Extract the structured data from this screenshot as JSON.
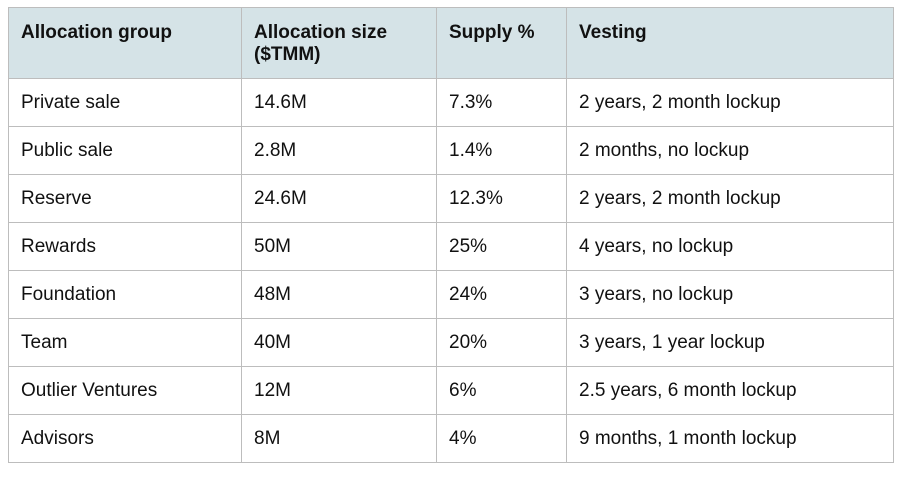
{
  "table": {
    "headers": [
      "Allocation group",
      "Allocation size\n($TMM)",
      "Supply %",
      "Vesting"
    ],
    "rows": [
      [
        "Private sale",
        "14.6M",
        "7.3%",
        "2 years, 2 month lockup"
      ],
      [
        "Public sale",
        "2.8M",
        "1.4%",
        "2 months, no lockup"
      ],
      [
        "Reserve",
        "24.6M",
        "12.3%",
        "2 years, 2 month lockup"
      ],
      [
        "Rewards",
        "50M",
        "25%",
        "4 years, no lockup"
      ],
      [
        "Foundation",
        "48M",
        "24%",
        "3 years, no lockup"
      ],
      [
        "Team",
        "40M",
        "20%",
        "3 years, 1 year lockup"
      ],
      [
        "Outlier Ventures",
        "12M",
        "6%",
        "2.5 years, 6 month lockup"
      ],
      [
        "Advisors",
        "8M",
        "4%",
        "9 months, 1 month lockup"
      ]
    ]
  },
  "colors": {
    "header_bg": "#d5e3e7",
    "border": "#bdbdbd",
    "text": "#111111"
  }
}
